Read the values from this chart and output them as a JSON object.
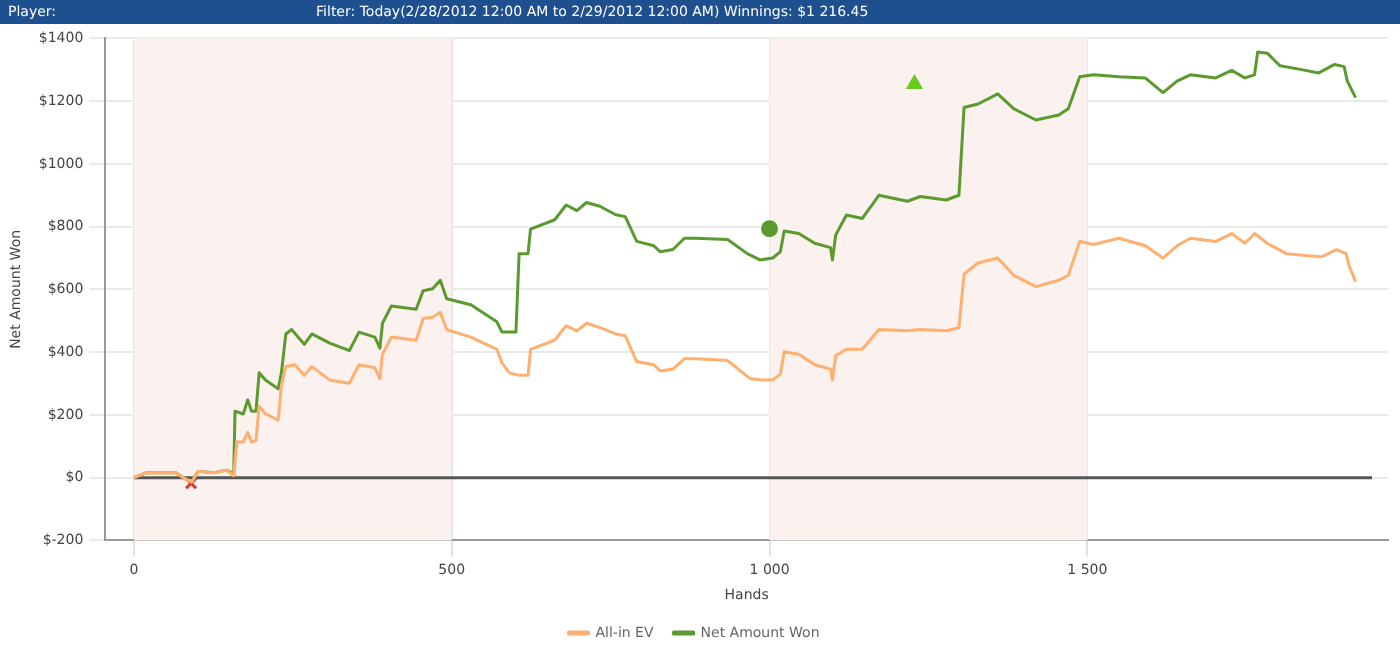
{
  "chart_data": {
    "type": "line",
    "title": "Player:",
    "subtitle": "Filter: Today(2/28/2012 12:00 AM to 2/29/2012 12:00 AM) Winnings: $1 216.45",
    "xlabel": "Hands",
    "ylabel": "Net Amount Won",
    "xlim": [
      -45,
      1973
    ],
    "xticks": [
      0,
      500,
      {
        "value": 1000,
        "label": "1 000"
      },
      {
        "value": 1500,
        "label": "1 500"
      }
    ],
    "ylim": [
      -200,
      1400
    ],
    "yticks": [
      {
        "value": -200,
        "label": "$-200"
      },
      {
        "value": 0,
        "label": "$0"
      },
      {
        "value": 200,
        "label": "$200"
      },
      {
        "value": 400,
        "label": "$400"
      },
      {
        "value": 600,
        "label": "$600"
      },
      {
        "value": 800,
        "label": "$800"
      },
      {
        "value": 1000,
        "label": "$1000"
      },
      {
        "value": 1200,
        "label": "$1200"
      },
      {
        "value": 1400,
        "label": "$1400"
      }
    ],
    "grid": true,
    "legend": "bottom",
    "line_style": "solid",
    "marker": "none",
    "bands": [
      {
        "axis": "x",
        "from": 0,
        "to": 500,
        "color": "#fbf1ee"
      },
      {
        "axis": "x",
        "from": 1000,
        "to": 1500,
        "color": "#fbf1ee"
      }
    ],
    "ref_lines": [
      {
        "axis": "y",
        "value": 0,
        "color": "#555555"
      }
    ],
    "series": [
      {
        "name": "All-in EV",
        "color": "#ffb070",
        "x": [
          0,
          20,
          40,
          66,
          81,
          91,
          101,
          127,
          146,
          157,
          162,
          172,
          179,
          185,
          192,
          197,
          207,
          227,
          232,
          239,
          253,
          268,
          280,
          308,
          339,
          354,
          379,
          387,
          391,
          405,
          444,
          455,
          470,
          482,
          492,
          530,
          571,
          579,
          591,
          606,
          620,
          624,
          662,
          680,
          697,
          712,
          733,
          758,
          773,
          791,
          818,
          828,
          848,
          866,
          884,
          934,
          970,
          990,
          1005,
          1017,
          1023,
          1046,
          1071,
          1096,
          1099,
          1104,
          1121,
          1146,
          1172,
          1217,
          1237,
          1278,
          1298,
          1306,
          1328,
          1359,
          1384,
          1419,
          1455,
          1470,
          1488,
          1510,
          1550,
          1591,
          1619,
          1641,
          1662,
          1702,
          1727,
          1748,
          1763,
          1783,
          1813,
          1843,
          1869,
          1892,
          1907,
          1912,
          1922
        ],
        "values": [
          0,
          16,
          16,
          16,
          -4,
          -14,
          20,
          16,
          24,
          6,
          114,
          114,
          144,
          114,
          118,
          228,
          203,
          183,
          295,
          354,
          360,
          326,
          354,
          311,
          301,
          360,
          350,
          315,
          393,
          448,
          438,
          507,
          511,
          527,
          472,
          448,
          409,
          365,
          334,
          326,
          326,
          409,
          438,
          484,
          468,
          492,
          478,
          458,
          452,
          370,
          360,
          340,
          346,
          379,
          379,
          373,
          315,
          311,
          311,
          330,
          401,
          393,
          360,
          346,
          311,
          389,
          409,
          409,
          472,
          468,
          472,
          468,
          478,
          649,
          684,
          700,
          645,
          609,
          629,
          645,
          753,
          743,
          763,
          739,
          700,
          739,
          763,
          753,
          778,
          747,
          778,
          747,
          714,
          708,
          704,
          727,
          714,
          674,
          625
        ]
      },
      {
        "name": "Net Amount Won",
        "color": "#5a9a2e",
        "x": [
          0,
          20,
          40,
          66,
          81,
          91,
          101,
          127,
          146,
          157,
          159,
          172,
          179,
          185,
          192,
          197,
          207,
          227,
          232,
          239,
          248,
          268,
          280,
          308,
          339,
          354,
          379,
          387,
          391,
          405,
          444,
          455,
          470,
          482,
          492,
          530,
          571,
          579,
          601,
          606,
          620,
          624,
          662,
          680,
          697,
          712,
          733,
          758,
          773,
          791,
          818,
          828,
          848,
          866,
          884,
          934,
          965,
          985,
          1005,
          1017,
          1023,
          1046,
          1071,
          1096,
          1099,
          1104,
          1121,
          1146,
          1172,
          1217,
          1237,
          1278,
          1298,
          1306,
          1328,
          1359,
          1384,
          1419,
          1455,
          1470,
          1488,
          1510,
          1550,
          1591,
          1619,
          1641,
          1662,
          1702,
          1727,
          1748,
          1763,
          1768,
          1783,
          1803,
          1833,
          1864,
          1889,
          1904,
          1909,
          1922
        ],
        "values": [
          0,
          16,
          16,
          16,
          -4,
          -14,
          20,
          16,
          24,
          12,
          212,
          203,
          248,
          212,
          212,
          334,
          311,
          283,
          334,
          458,
          472,
          425,
          458,
          429,
          405,
          464,
          448,
          413,
          492,
          547,
          537,
          596,
          602,
          629,
          570,
          551,
          497,
          464,
          464,
          714,
          714,
          792,
          822,
          869,
          851,
          877,
          865,
          838,
          832,
          753,
          739,
          720,
          727,
          763,
          763,
          759,
          714,
          694,
          700,
          720,
          786,
          778,
          747,
          733,
          694,
          773,
          837,
          826,
          900,
          881,
          896,
          885,
          900,
          1180,
          1191,
          1223,
          1176,
          1140,
          1156,
          1176,
          1278,
          1284,
          1278,
          1274,
          1227,
          1264,
          1284,
          1274,
          1298,
          1274,
          1284,
          1357,
          1353,
          1313,
          1302,
          1290,
          1317,
          1310,
          1264,
          1211
        ]
      },
      {
        "type": "scatter",
        "marker": "circle",
        "color": "#5a9a2e",
        "x": [
          1000
        ],
        "values": [
          793
        ]
      },
      {
        "type": "scatter",
        "marker": "triangle",
        "color": "#66cc22",
        "x": [
          1228
        ],
        "values": [
          1255
        ]
      },
      {
        "type": "scatter",
        "marker": "cross",
        "color": "#dd3333",
        "x": [
          90
        ],
        "values": [
          -18
        ]
      }
    ]
  }
}
